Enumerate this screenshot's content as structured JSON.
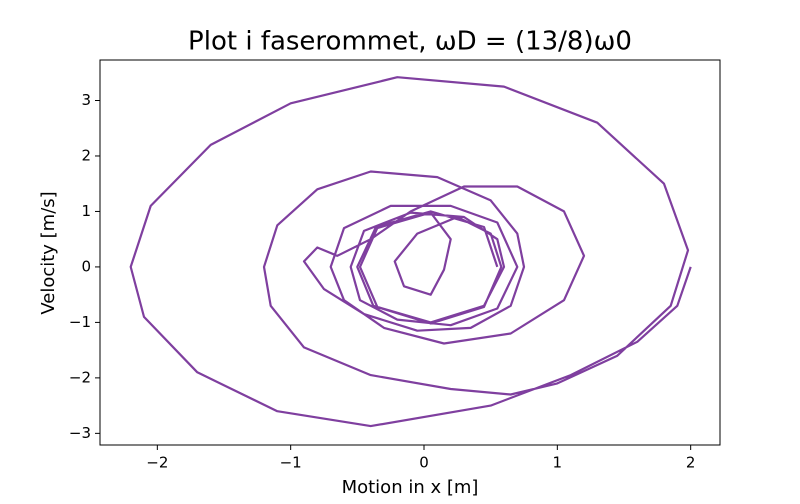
{
  "chart_data": {
    "type": "line",
    "title": "Plot i faserommet, ωD = (13/8)ω0",
    "xlabel": "Motion in x [m]",
    "ylabel": "Velocity [m/s]",
    "xlim": [
      -2.43,
      2.22
    ],
    "ylim": [
      -3.21,
      3.73
    ],
    "xticks": [
      {
        "value": -2,
        "label": "−2"
      },
      {
        "value": -1,
        "label": "−1"
      },
      0,
      1,
      2
    ],
    "yticks": [
      {
        "value": -3,
        "label": "−3"
      },
      {
        "value": -2,
        "label": "−2"
      },
      {
        "value": -1,
        "label": "−1"
      },
      0,
      1,
      2,
      3
    ],
    "x": [
      2,
      1.9,
      1.6,
      1.1,
      0.5,
      -0.4,
      -1.1,
      -1.7,
      -2.1,
      -2.2,
      -2.05,
      -1.6,
      -1.0,
      -0.2,
      0.6,
      1.3,
      1.8,
      1.98,
      1.85,
      1.45,
      1.0,
      0.65,
      0.2,
      -0.4,
      -0.9,
      -1.15,
      -1.2,
      -1.1,
      -0.8,
      -0.4,
      0.1,
      0.5,
      0.7,
      0.75,
      0.65,
      0.35,
      -0.05,
      -0.45,
      -0.75,
      -0.9,
      -0.8,
      -0.65,
      -0.4,
      -0.1,
      0.3,
      0.7,
      1.05,
      1.2,
      1.05,
      0.65,
      0.15,
      -0.3,
      -0.6,
      -0.7,
      -0.6,
      -0.25,
      0.2,
      0.55,
      0.7,
      0.55,
      0.2,
      -0.2,
      -0.48,
      -0.55,
      -0.45,
      -0.1,
      0.3,
      0.55,
      0.6,
      0.45,
      0.05,
      -0.35,
      -0.48,
      -0.35,
      0.05,
      0.2,
      0.15,
      0.05,
      -0.15,
      -0.22,
      -0.05,
      0.25,
      0.5,
      0.58,
      0.45,
      0.05,
      -0.38,
      -0.5,
      -0.36,
      0.05,
      0.45,
      0.55
    ],
    "series": [
      {
        "color": "#7f3f9f",
        "values": [
          0,
          -0.7,
          -1.35,
          -1.95,
          -2.5,
          -2.87,
          -2.6,
          -1.9,
          -0.9,
          0,
          1.1,
          2.2,
          2.95,
          3.42,
          3.25,
          2.6,
          1.5,
          0.3,
          -0.7,
          -1.6,
          -2.1,
          -2.3,
          -2.2,
          -1.95,
          -1.45,
          -0.7,
          0,
          0.75,
          1.4,
          1.72,
          1.62,
          1.2,
          0.6,
          0,
          -0.7,
          -1.1,
          -1.15,
          -0.85,
          -0.4,
          0.1,
          0.35,
          0.2,
          0.5,
          1.0,
          1.45,
          1.45,
          1.0,
          0.2,
          -0.6,
          -1.2,
          -1.38,
          -1.1,
          -0.6,
          0,
          0.7,
          1.1,
          1.1,
          0.8,
          0,
          -0.75,
          -1.05,
          -0.95,
          -0.6,
          0,
          0.65,
          0.98,
          0.9,
          0.5,
          0,
          -0.7,
          -1.0,
          -0.72,
          0,
          0.7,
          0.98,
          0.5,
          -0.05,
          -0.5,
          -0.35,
          0.1,
          0.6,
          0.9,
          0.6,
          0,
          -0.72,
          -1.02,
          -0.7,
          0,
          0.72,
          1.0,
          0.72,
          0
        ]
      }
    ]
  }
}
